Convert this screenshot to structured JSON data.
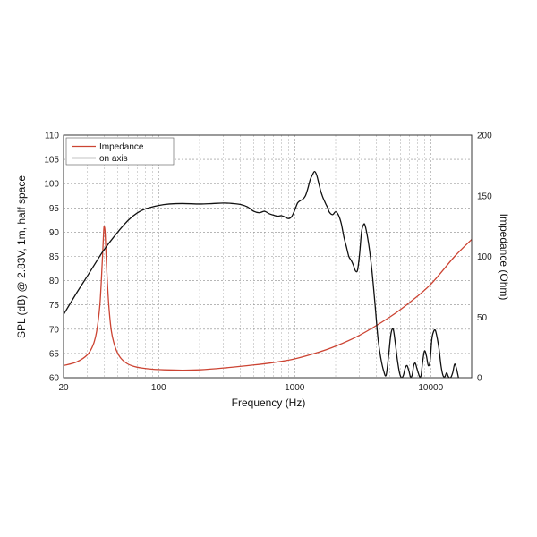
{
  "chart_data": {
    "type": "line",
    "xlabel": "Frequency (Hz)",
    "ylabel_left": "SPL (dB) @ 2.83V, 1m, half space",
    "ylabel_right": "Impedance (Ohm)",
    "x_scale": "log",
    "xlim": [
      20,
      20000
    ],
    "ylim_left": [
      60,
      110
    ],
    "ylim_right": [
      0,
      200
    ],
    "x_ticks": [
      20,
      100,
      1000,
      10000
    ],
    "x_tick_labels": [
      "20",
      "100",
      "1000",
      "10000"
    ],
    "y_left_ticks": [
      60,
      65,
      70,
      75,
      80,
      85,
      90,
      95,
      100,
      105,
      110
    ],
    "y_left_tick_labels": [
      "60",
      "65",
      "70",
      "75",
      "80",
      "85",
      "90",
      "95",
      "100",
      "105",
      "110"
    ],
    "y_right_ticks": [
      0,
      50,
      100,
      150,
      200
    ],
    "y_right_tick_labels": [
      "0",
      "50",
      "100",
      "150",
      "200"
    ],
    "grid": true,
    "legend_position": "top-left",
    "series": [
      {
        "name": "Impedance",
        "axis": "right",
        "color": "#cc4433",
        "x": [
          20,
          25,
          30,
          33,
          35,
          37,
          38.5,
          39.5,
          40,
          40.5,
          41.5,
          43,
          45,
          48,
          52,
          58,
          65,
          75,
          90,
          110,
          150,
          200,
          300,
          500,
          700,
          1000,
          1500,
          2000,
          3000,
          5000,
          7000,
          10000,
          15000,
          20000
        ],
        "values": [
          10,
          13,
          19,
          27,
          38,
          60,
          95,
          122,
          124,
          118,
          90,
          60,
          38,
          25,
          17,
          12,
          9.5,
          8,
          7,
          6.5,
          6.2,
          6.5,
          8,
          10.5,
          12.5,
          15.5,
          21,
          26,
          35,
          50,
          62,
          77,
          100,
          114
        ]
      },
      {
        "name": "on axis",
        "axis": "left",
        "color": "#111111",
        "x": [
          20,
          25,
          30,
          35,
          40,
          50,
          60,
          70,
          80,
          100,
          120,
          150,
          200,
          250,
          300,
          350,
          400,
          450,
          500,
          550,
          600,
          650,
          700,
          750,
          800,
          850,
          900,
          950,
          1000,
          1050,
          1100,
          1150,
          1200,
          1250,
          1300,
          1350,
          1400,
          1450,
          1500,
          1550,
          1600,
          1650,
          1700,
          1750,
          1800,
          1900,
          2000,
          2100,
          2200,
          2300,
          2400,
          2500,
          2600,
          2700,
          2800,
          2900,
          3000,
          3100,
          3200,
          3300,
          3500,
          3700,
          3900,
          4100,
          4300,
          4500,
          4700,
          4900,
          5100,
          5300,
          5500,
          5700,
          5900,
          6100,
          6300,
          6500,
          6700,
          6900,
          7100,
          7300,
          7500,
          7700,
          7900,
          8100,
          8300,
          8500,
          8700,
          9000,
          9300,
          9600,
          9900,
          10200,
          10500,
          10800,
          11100,
          11500,
          11900,
          12300,
          12700,
          13100,
          13500,
          14000,
          14500,
          15000,
          15500,
          16000
        ],
        "values": [
          73,
          77.5,
          81,
          84,
          86.5,
          90,
          92.5,
          94,
          94.8,
          95.5,
          95.8,
          95.9,
          95.8,
          95.9,
          96,
          95.9,
          95.7,
          95.2,
          94.3,
          94,
          94.3,
          93.8,
          93.5,
          93.3,
          93.4,
          93.1,
          92.8,
          93.2,
          94.5,
          96,
          96.5,
          96.8,
          97.5,
          99,
          100.8,
          101.8,
          102.5,
          101.8,
          100.2,
          98.6,
          97.4,
          96.5,
          95.7,
          95,
          94.1,
          93.6,
          94.2,
          93.5,
          91.8,
          89,
          87,
          85,
          84.2,
          83.2,
          82,
          82.2,
          85.5,
          90,
          91.5,
          91.3,
          87.5,
          82,
          75,
          68,
          64,
          61.5,
          60.5,
          64.5,
          69,
          70,
          67,
          63.5,
          61,
          60,
          60.5,
          62,
          62.5,
          61.5,
          60.2,
          60.5,
          62.5,
          63,
          62,
          61,
          60.2,
          60.5,
          63,
          65.5,
          64.5,
          62.5,
          63.5,
          68,
          69.5,
          69.8,
          68.5,
          66,
          62.5,
          60.5,
          60.2,
          61,
          60.2,
          60,
          61,
          62.8,
          61.8,
          60
        ]
      }
    ]
  }
}
